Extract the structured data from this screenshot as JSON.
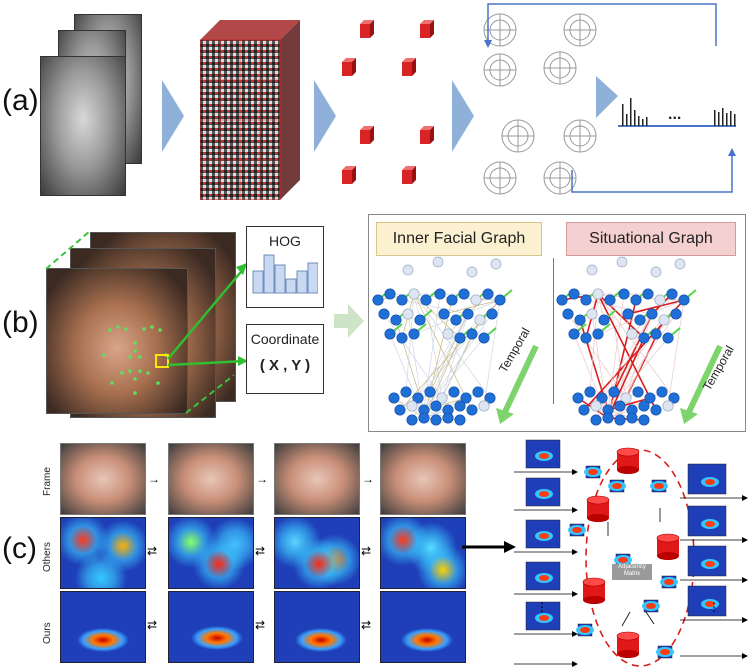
{
  "panels": {
    "a": {
      "label": "(a)"
    },
    "b": {
      "label": "(b)",
      "hog_label": "HOG",
      "coordinate_label": "Coordinate",
      "xy_label": "( X , Y )",
      "inner_graph_title": "Inner Facial Graph",
      "situational_graph_title": "Situational Graph",
      "temporal_label_1": "Temporal",
      "temporal_label_2": "Temporal"
    },
    "c": {
      "label": "(c)",
      "row_labels": [
        "Frame",
        "Others",
        "Ours"
      ],
      "adjacency_label": "Adjacency Matrix",
      "ellipsis": "...",
      "ellipsis_left": "⋮",
      "ellipsis_right": "⋮"
    }
  },
  "colors": {
    "chevron": "#8fb0d8",
    "node_blue": "#1f6fd6",
    "node_light": "#dde5f2",
    "edge_green": "#58d24c",
    "edge_red": "#d81e1e",
    "cylinder_red": "#e01818",
    "hog_fill": "#c9d9f2",
    "inner_title_bg": "#fbf0cf",
    "situational_title_bg": "#f5d0d0"
  },
  "hog_bins": [
    0.55,
    0.95,
    0.7,
    0.35,
    0.55,
    0.75
  ]
}
